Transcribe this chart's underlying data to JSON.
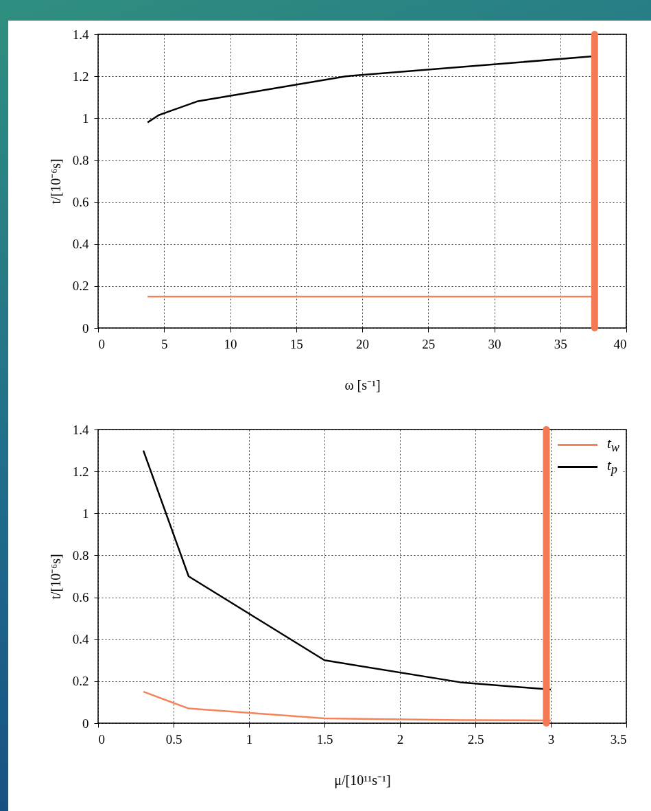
{
  "chart_data": [
    {
      "type": "line",
      "xlabel": "ω [s⁻¹]",
      "ylabel": "t/[10⁻⁶s]",
      "xlim": [
        0,
        40
      ],
      "xticks": [
        0,
        5,
        10,
        15,
        20,
        25,
        30,
        35,
        40
      ],
      "ylim": [
        0,
        1.4
      ],
      "yticks": [
        0,
        0.2,
        0.4,
        0.6,
        0.8,
        1,
        1.2,
        1.4
      ],
      "grid": true,
      "line_style": "solid",
      "marker": "none",
      "series": [
        {
          "color": "#f4825a",
          "x": [
            3.75,
            7.5,
            18.75,
            37.5
          ],
          "values": [
            0.15,
            0.15,
            0.15,
            0.15
          ]
        },
        {
          "color": "#000000",
          "x": [
            3.75,
            4.6,
            7.5,
            18.75,
            37.5
          ],
          "values": [
            0.98,
            1.015,
            1.08,
            1.2,
            1.295
          ]
        }
      ],
      "ref_lines": [
        {
          "axis": "x",
          "value": 37.6,
          "color": "#f47a55"
        }
      ]
    },
    {
      "type": "line",
      "xlabel": "μ/[10¹¹s⁻¹]",
      "ylabel": "t/[10⁻⁶s]",
      "xlim": [
        0,
        3.5
      ],
      "xticks": [
        0,
        0.5,
        1,
        1.5,
        2,
        2.5,
        3,
        3.5
      ],
      "ylim": [
        0,
        1.4
      ],
      "yticks": [
        0,
        0.2,
        0.4,
        0.6,
        0.8,
        1,
        1.2,
        1.4
      ],
      "grid": true,
      "line_style": "solid",
      "marker": "none",
      "legend": "top right",
      "series": [
        {
          "name": "t$_{w}$",
          "color": "#f4825a",
          "x": [
            0.3,
            0.6,
            1.5,
            2.4,
            3.0
          ],
          "values": [
            0.15,
            0.07,
            0.023,
            0.015,
            0.013
          ]
        },
        {
          "name": "t$_{p}$",
          "color": "#000000",
          "x": [
            0.3,
            0.6,
            1.5,
            2.4,
            3.0
          ],
          "values": [
            1.3,
            0.7,
            0.3,
            0.195,
            0.16
          ]
        }
      ],
      "ref_lines": [
        {
          "axis": "x",
          "value": 2.97,
          "color": "#f47a55"
        }
      ]
    }
  ]
}
